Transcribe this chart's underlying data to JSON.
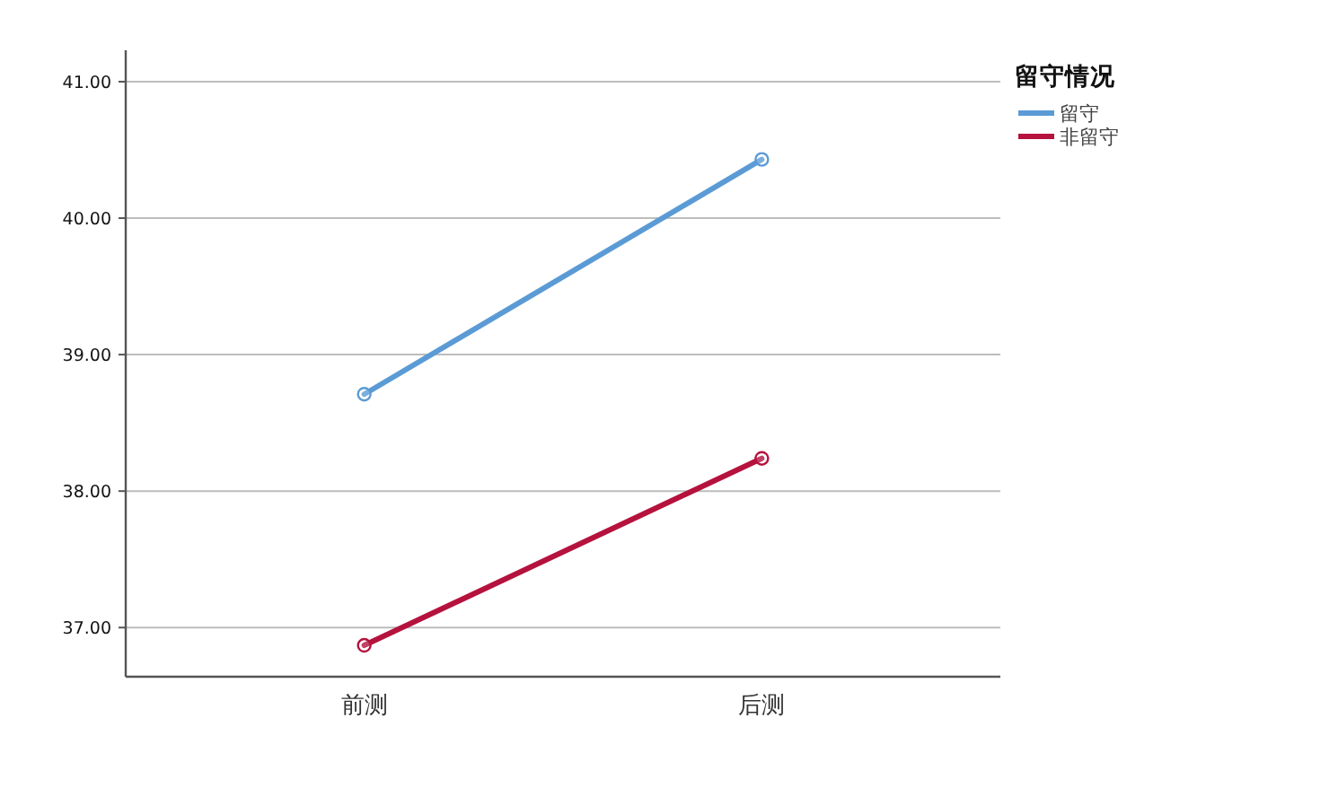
{
  "chart_data": {
    "type": "line",
    "legend_title": "留守情况",
    "categories": [
      "前测",
      "后测"
    ],
    "series": [
      {
        "name": "留守",
        "color": "#5b9bd5",
        "values": [
          38.71,
          40.43
        ]
      },
      {
        "name": "非留守",
        "color": "#b5123e",
        "values": [
          36.87,
          38.24
        ]
      }
    ],
    "ylim": [
      36.64,
      41.23
    ],
    "yticks": [
      {
        "value": 37,
        "label": "37.00"
      },
      {
        "value": 38,
        "label": "38.00"
      },
      {
        "value": 39,
        "label": "39.00"
      },
      {
        "value": 40,
        "label": "40.00"
      },
      {
        "value": 41,
        "label": "41.00"
      }
    ],
    "grid": "y",
    "legend": "top right",
    "marker": "circle",
    "line_style": "solid"
  }
}
